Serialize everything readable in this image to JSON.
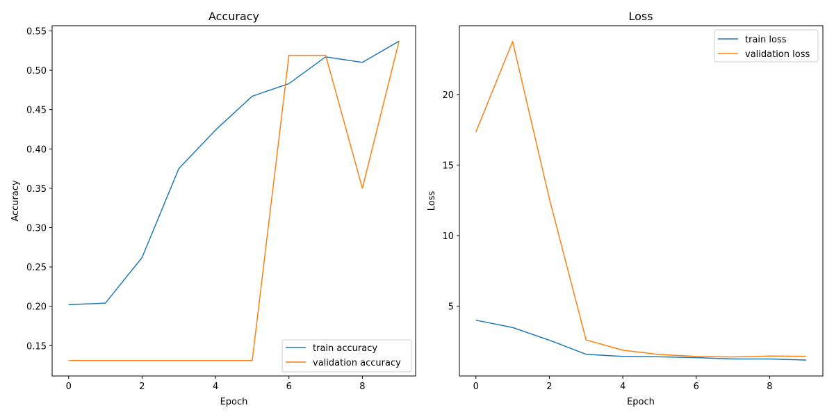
{
  "chart_data": [
    {
      "type": "line",
      "title": "Accuracy",
      "xlabel": "Epoch",
      "ylabel": "Accuracy",
      "x": [
        0,
        1,
        2,
        3,
        4,
        5,
        6,
        7,
        8,
        9
      ],
      "xlim": [
        -0.45,
        9.45
      ],
      "ylim": [
        0.1114,
        0.5566
      ],
      "xticks": [
        0,
        2,
        4,
        6,
        8
      ],
      "yticks": [
        0.15,
        0.2,
        0.25,
        0.3,
        0.35,
        0.4,
        0.45,
        0.5,
        0.55
      ],
      "ytick_labels": [
        "0.15",
        "0.20",
        "0.25",
        "0.30",
        "0.35",
        "0.40",
        "0.45",
        "0.50",
        "0.55"
      ],
      "grid": false,
      "legend_position": "lower-right",
      "series": [
        {
          "name": "train accuracy",
          "color": "#1f77b4",
          "values": [
            0.202,
            0.204,
            0.262,
            0.375,
            0.424,
            0.467,
            0.483,
            0.517,
            0.51,
            0.537
          ]
        },
        {
          "name": "validation accuracy",
          "color": "#ff7f0e",
          "values": [
            0.131,
            0.131,
            0.131,
            0.131,
            0.131,
            0.131,
            0.519,
            0.519,
            0.35,
            0.537
          ]
        }
      ]
    },
    {
      "type": "line",
      "title": "Loss",
      "xlabel": "Epoch",
      "ylabel": "Loss",
      "x": [
        0,
        1,
        2,
        3,
        4,
        5,
        6,
        7,
        8,
        9
      ],
      "xlim": [
        -0.45,
        9.45
      ],
      "ylim": [
        0.04,
        24.89
      ],
      "xticks": [
        0,
        2,
        4,
        6,
        8
      ],
      "yticks": [
        5,
        10,
        15,
        20
      ],
      "ytick_labels": [
        "5",
        "10",
        "15",
        "20"
      ],
      "grid": false,
      "legend_position": "upper-right",
      "series": [
        {
          "name": "train loss",
          "color": "#1f77b4",
          "values": [
            4.0,
            3.48,
            2.58,
            1.58,
            1.43,
            1.4,
            1.34,
            1.25,
            1.25,
            1.17
          ]
        },
        {
          "name": "validation loss",
          "color": "#ff7f0e",
          "values": [
            17.35,
            23.77,
            12.62,
            2.6,
            1.87,
            1.56,
            1.43,
            1.39,
            1.46,
            1.44
          ]
        }
      ]
    }
  ]
}
